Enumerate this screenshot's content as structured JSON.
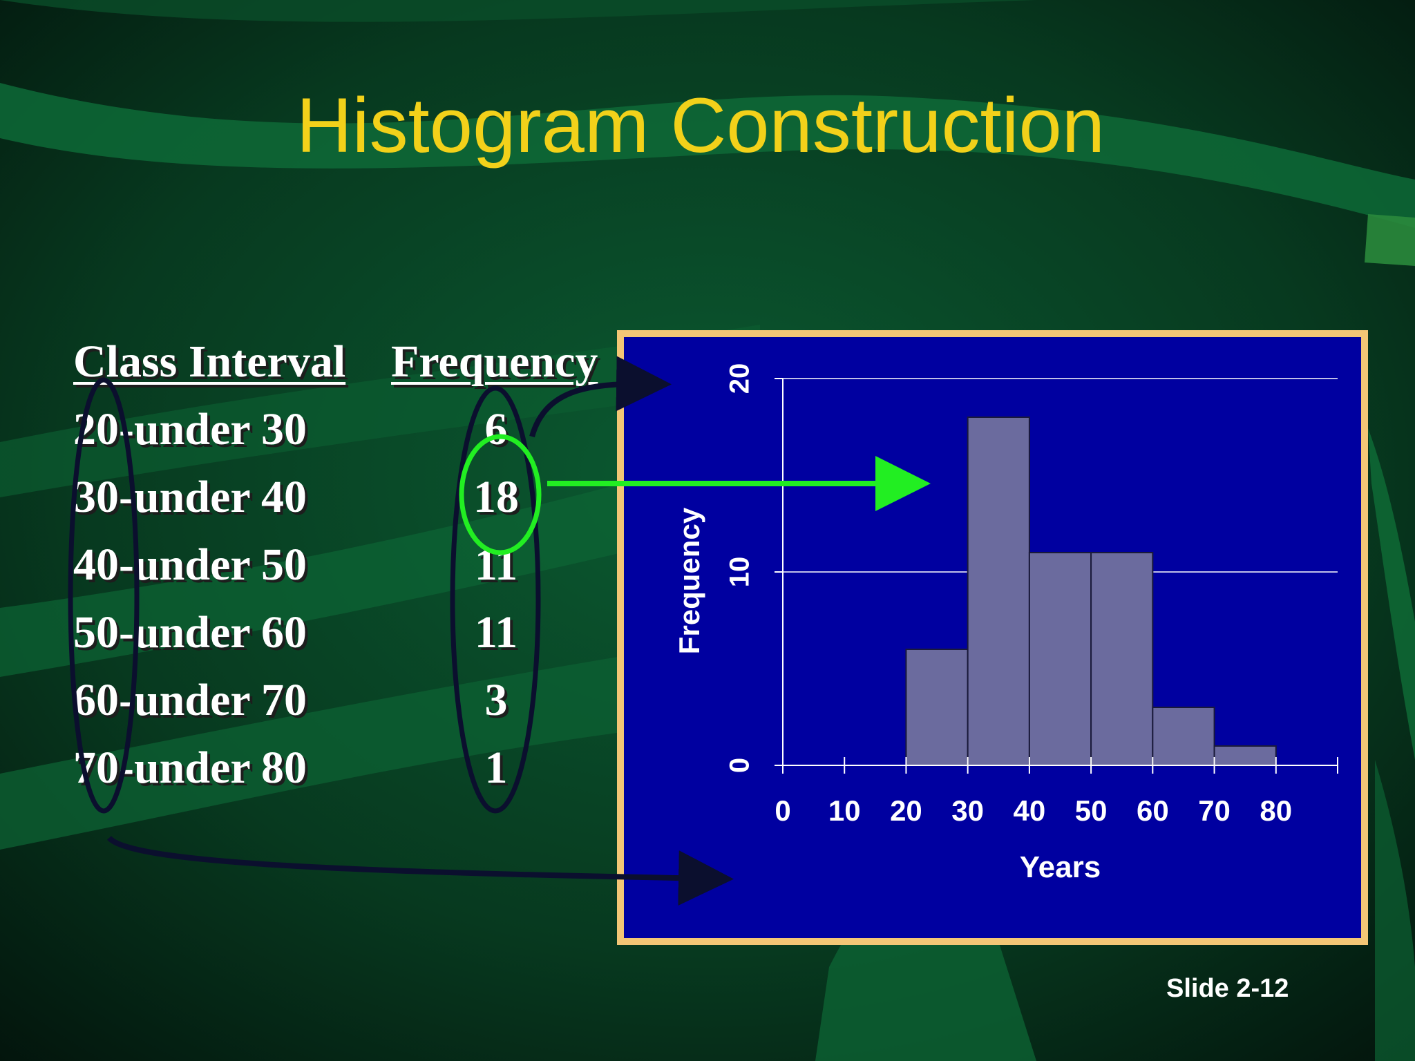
{
  "slide": {
    "title": "Histogram Construction",
    "slide_number": "Slide 2-12"
  },
  "table": {
    "headers": [
      "Class Interval",
      "Frequency"
    ],
    "rows": [
      {
        "interval": "20-under 30",
        "frequency": "6"
      },
      {
        "interval": "30-under 40",
        "frequency": "18"
      },
      {
        "interval": "40-under 50",
        "frequency": "11"
      },
      {
        "interval": "50-under 60",
        "frequency": "11"
      },
      {
        "interval": "60-under 70",
        "frequency": "3"
      },
      {
        "interval": "70-under 80",
        "frequency": "1"
      }
    ]
  },
  "colors": {
    "title": "#f2d11a",
    "chart_background": "#0000a0",
    "chart_border": "#f3c676",
    "bar_fill": "#6b6b9e",
    "highlight": "#22ee22"
  },
  "chart_data": {
    "type": "bar",
    "bins": [
      [
        20,
        30
      ],
      [
        30,
        40
      ],
      [
        40,
        50
      ],
      [
        50,
        60
      ],
      [
        60,
        70
      ],
      [
        70,
        80
      ]
    ],
    "values": [
      6,
      18,
      11,
      11,
      3,
      1
    ],
    "xlabel": "Years",
    "ylabel": "Frequency",
    "xlim": [
      0,
      90
    ],
    "ylim": [
      0,
      20
    ],
    "xticks": [
      0,
      10,
      20,
      30,
      40,
      50,
      60,
      70,
      80
    ],
    "yticks": [
      0,
      10,
      20
    ],
    "grid": true
  }
}
